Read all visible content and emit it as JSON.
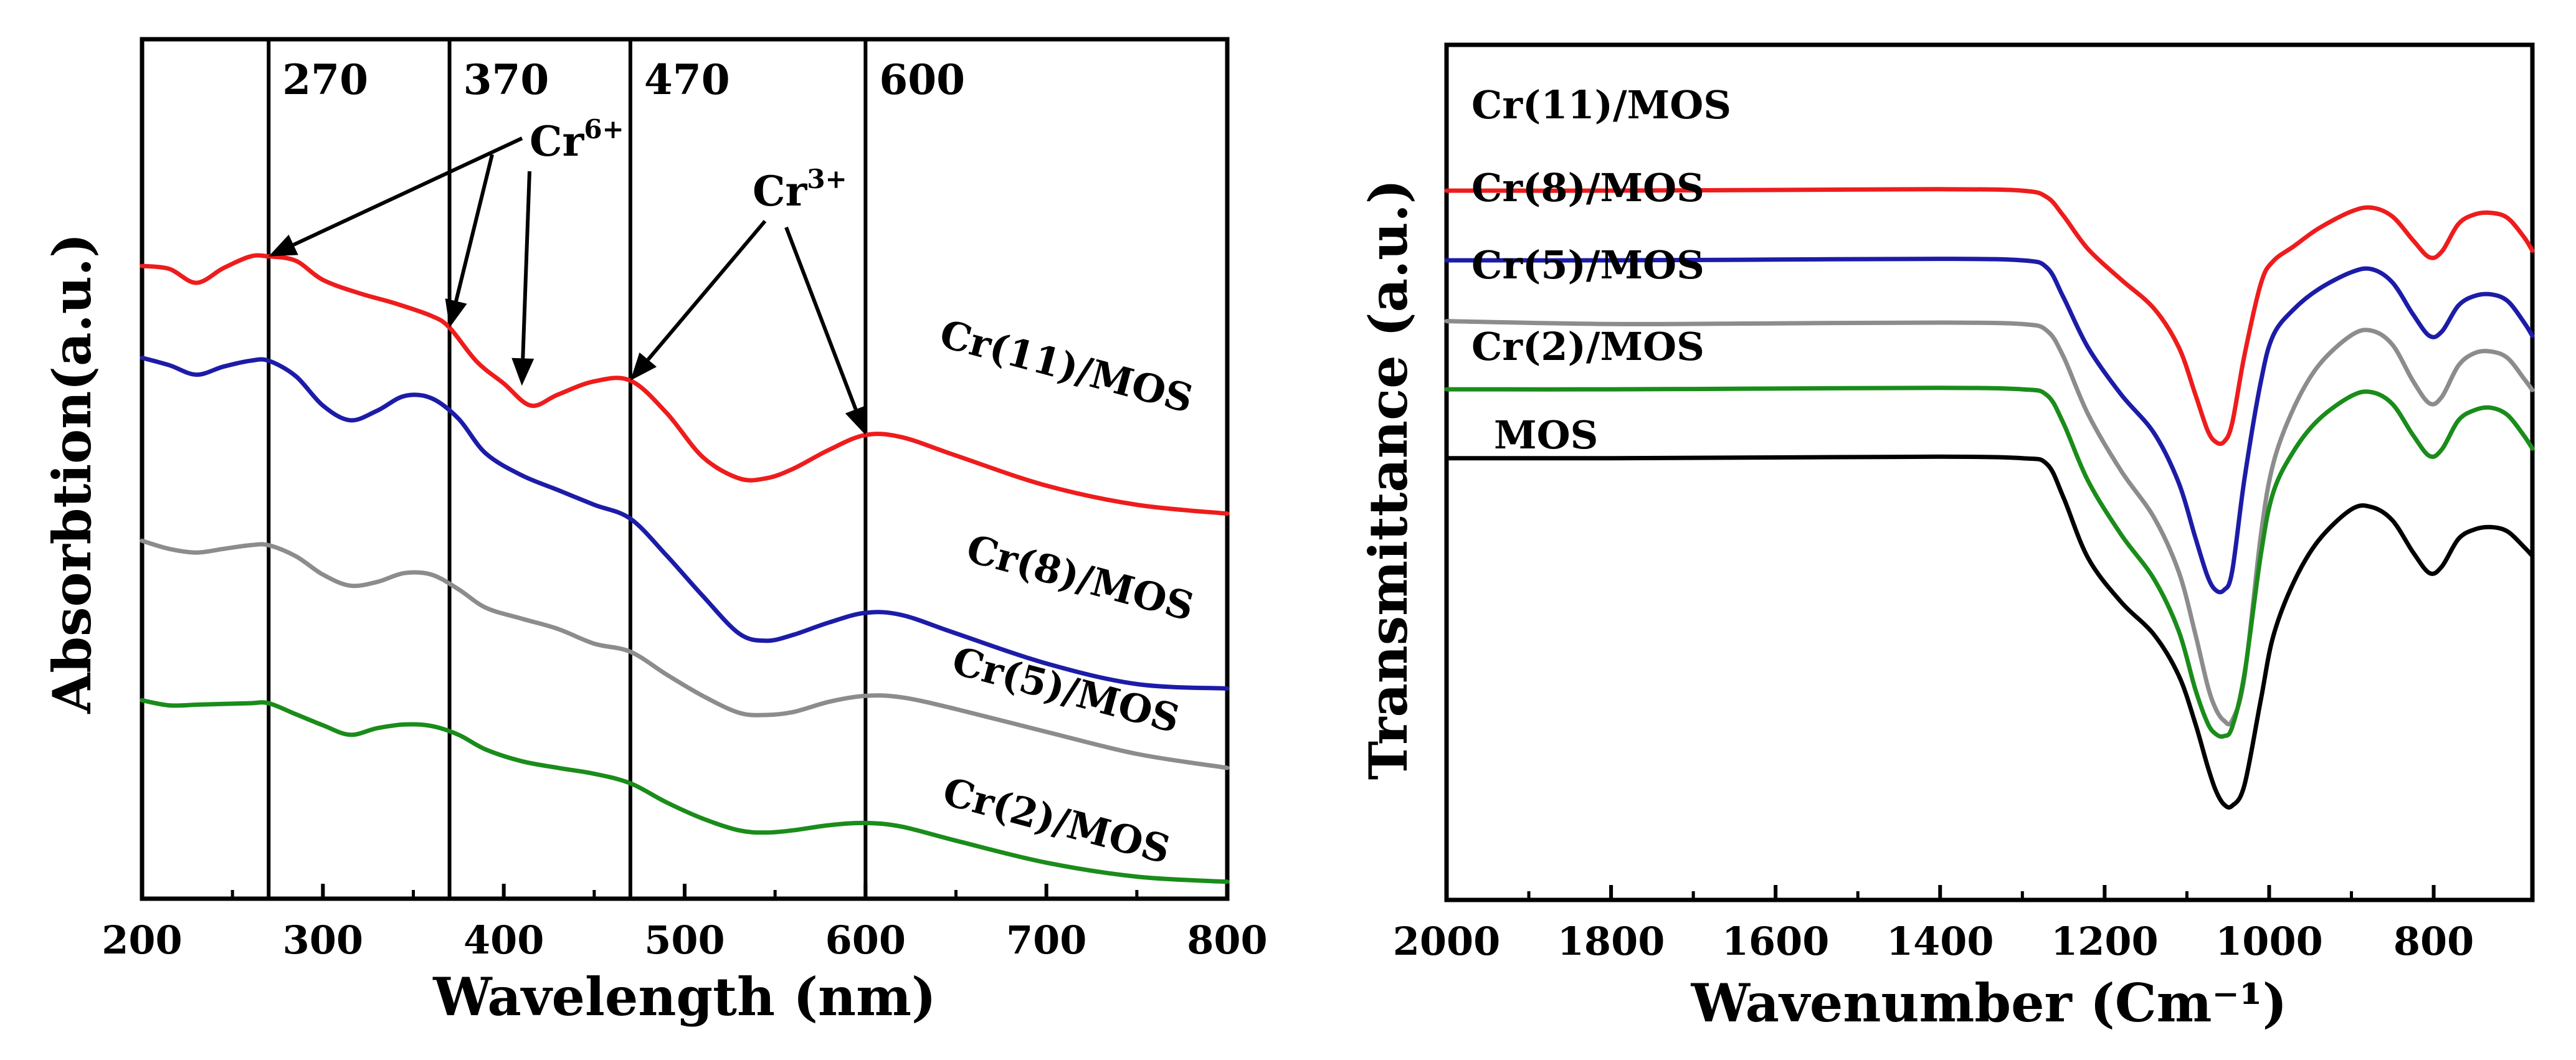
{
  "chart_data": [
    {
      "type": "line",
      "panel": "left",
      "title": "",
      "xlabel": "Wavelength (nm)",
      "ylabel": "Absorbtion(a.u.)",
      "xlim": [
        200,
        800
      ],
      "ylim": [
        0,
        100
      ],
      "yticks_shown": false,
      "xticks": [
        "200",
        "300",
        "400",
        "500",
        "600",
        "700",
        "800"
      ],
      "vertical_markers": [
        {
          "x": 270,
          "label": "270"
        },
        {
          "x": 370,
          "label": "370"
        },
        {
          "x": 470,
          "label": "470"
        },
        {
          "x": 600,
          "label": "600"
        }
      ],
      "annotations": [
        {
          "label": "Cr",
          "superscript": "6+",
          "points_to": [
            [
              270,
              86.3
            ],
            [
              370,
              76.6
            ],
            [
              410,
              68.7
            ]
          ]
        },
        {
          "label": "Cr",
          "superscript": "3+",
          "points_to": [
            [
              470,
              69.4
            ],
            [
              600,
              62.0
            ]
          ]
        }
      ],
      "series": [
        {
          "name": "Cr(11)/MOS",
          "color": "#ee1c1c",
          "x": [
            200,
            215,
            230,
            245,
            260,
            270,
            285,
            300,
            320,
            340,
            360,
            370,
            385,
            400,
            415,
            430,
            450,
            470,
            490,
            510,
            530,
            545,
            560,
            580,
            600,
            620,
            650,
            700,
            750,
            800
          ],
          "y": [
            85.0,
            84.6,
            82.7,
            84.7,
            86.3,
            86.3,
            85.7,
            83.1,
            81.3,
            79.9,
            78.2,
            76.6,
            72.0,
            69.0,
            66.0,
            67.5,
            69.3,
            69.4,
            65.0,
            59.0,
            56.1,
            56.1,
            57.4,
            60.0,
            62.0,
            61.7,
            59.2,
            55.1,
            52.5,
            51.3
          ]
        },
        {
          "name": "Cr(8)/MOS",
          "color": "#1c1ca8",
          "x": [
            200,
            215,
            230,
            245,
            260,
            270,
            285,
            300,
            315,
            330,
            345,
            360,
            375,
            390,
            410,
            430,
            450,
            470,
            490,
            510,
            530,
            545,
            560,
            580,
            600,
            620,
            650,
            700,
            750,
            800
          ],
          "y": [
            72.5,
            71.5,
            70.2,
            71.3,
            72.1,
            72.1,
            70.0,
            66.0,
            64.0,
            65.3,
            67.3,
            67.0,
            64.2,
            59.5,
            56.5,
            54.5,
            52.5,
            50.6,
            45.6,
            40.1,
            35.0,
            34.0,
            34.8,
            36.5,
            37.8,
            37.5,
            35.0,
            30.9,
            28.1,
            27.5
          ]
        },
        {
          "name": "Cr(5)/MOS",
          "color": "#8c8c8c",
          "x": [
            200,
            215,
            230,
            245,
            260,
            270,
            285,
            300,
            315,
            330,
            345,
            360,
            375,
            390,
            410,
            430,
            450,
            470,
            490,
            510,
            530,
            545,
            560,
            580,
            600,
            620,
            650,
            700,
            750,
            800
          ],
          "y": [
            47.6,
            46.5,
            46.0,
            46.5,
            47.0,
            47.0,
            45.5,
            43.0,
            41.5,
            42.0,
            43.2,
            43.0,
            41.0,
            38.5,
            37.0,
            35.6,
            33.6,
            32.5,
            29.4,
            26.5,
            24.2,
            23.9,
            24.3,
            25.7,
            26.5,
            26.3,
            24.7,
            21.6,
            18.6,
            16.7
          ]
        },
        {
          "name": "Cr(2)/MOS",
          "color": "#1a8c1a",
          "x": [
            200,
            215,
            230,
            245,
            260,
            270,
            285,
            300,
            315,
            330,
            345,
            360,
            375,
            390,
            410,
            430,
            450,
            470,
            490,
            510,
            530,
            545,
            560,
            580,
            600,
            620,
            650,
            700,
            750,
            800
          ],
          "y": [
            25.9,
            25.2,
            25.3,
            25.4,
            25.5,
            25.5,
            24.0,
            22.5,
            21.2,
            22.1,
            22.6,
            22.4,
            21.2,
            19.2,
            17.6,
            16.7,
            15.9,
            14.6,
            12.0,
            9.8,
            8.2,
            7.9,
            8.2,
            8.9,
            9.2,
            8.7,
            6.8,
            3.8,
            1.9,
            1.2
          ]
        }
      ]
    },
    {
      "type": "line",
      "panel": "right",
      "title": "",
      "xlabel": "Wavenumber (Cm⁻¹)",
      "ylabel": "Transmittance (a.u.)",
      "xlim": [
        2000,
        680
      ],
      "ylim": [
        0,
        100
      ],
      "yticks_shown": false,
      "xticks": [
        "2000",
        "1800",
        "1600",
        "1400",
        "1200",
        "1000",
        "800"
      ],
      "series": [
        {
          "name": "Cr(11)/MOS",
          "color": "#ee1c1c",
          "x": [
            2000,
            1800,
            1600,
            1400,
            1300,
            1270,
            1250,
            1220,
            1180,
            1140,
            1110,
            1090,
            1075,
            1065,
            1055,
            1045,
            1030,
            1010,
            995,
            970,
            940,
            900,
            875,
            850,
            825,
            805,
            790,
            770,
            750,
            730,
            710,
            690,
            680
          ],
          "y": [
            89.4,
            89.4,
            89.5,
            89.6,
            89.4,
            88.5,
            86.0,
            81.5,
            77.4,
            73.5,
            68.3,
            62.0,
            57.1,
            55.5,
            55.5,
            58.0,
            67.2,
            76.9,
            79.9,
            81.9,
            84.3,
            86.6,
            87.1,
            85.9,
            82.7,
            80.4,
            81.2,
            84.9,
            86.2,
            86.4,
            85.7,
            83.1,
            81.3
          ]
        },
        {
          "name": "Cr(8)/MOS",
          "color": "#1c1ca8",
          "x": [
            2000,
            1800,
            1600,
            1400,
            1300,
            1270,
            1250,
            1220,
            1180,
            1140,
            1110,
            1090,
            1075,
            1065,
            1055,
            1045,
            1030,
            1010,
            995,
            970,
            940,
            900,
            875,
            850,
            825,
            805,
            790,
            770,
            750,
            730,
            710,
            690,
            680
          ],
          "y": [
            80.0,
            80.0,
            80.1,
            80.2,
            80.0,
            79.0,
            75.0,
            68.2,
            61.9,
            56.7,
            50.0,
            42.7,
            37.4,
            35.5,
            35.5,
            38.0,
            50.5,
            63.7,
            69.9,
            73.4,
            76.1,
            78.4,
            78.8,
            77.0,
            72.7,
            69.8,
            70.4,
            73.9,
            75.2,
            75.4,
            74.5,
            71.6,
            69.8
          ]
        },
        {
          "name": "Cr(5)/MOS",
          "color": "#8c8c8c",
          "x": [
            2000,
            1800,
            1600,
            1400,
            1300,
            1270,
            1250,
            1220,
            1180,
            1140,
            1110,
            1090,
            1075,
            1065,
            1055,
            1045,
            1030,
            1010,
            995,
            970,
            940,
            900,
            875,
            850,
            825,
            805,
            790,
            770,
            750,
            730,
            710,
            690,
            680
          ],
          "y": [
            71.8,
            71.4,
            71.5,
            71.6,
            71.4,
            70.5,
            67.0,
            59.2,
            51.6,
            45.3,
            38.0,
            29.7,
            22.7,
            19.5,
            17.9,
            17.9,
            23.8,
            43.0,
            52.6,
            60.1,
            65.8,
            69.9,
            70.5,
            68.6,
            63.7,
            60.7,
            61.6,
            65.8,
            67.5,
            67.7,
            66.8,
            64.0,
            62.5
          ]
        },
        {
          "name": "Cr(2)/MOS",
          "color": "#1a8c1a",
          "x": [
            2000,
            1800,
            1600,
            1400,
            1300,
            1270,
            1250,
            1220,
            1180,
            1140,
            1110,
            1090,
            1075,
            1065,
            1055,
            1045,
            1030,
            1010,
            995,
            970,
            940,
            900,
            875,
            850,
            825,
            805,
            790,
            770,
            750,
            730,
            710,
            690,
            680
          ],
          "y": [
            62.6,
            62.6,
            62.7,
            62.8,
            62.6,
            61.8,
            58.0,
            50.2,
            43.0,
            37.0,
            30.0,
            22.2,
            17.6,
            16.1,
            15.8,
            17.0,
            24.2,
            40.4,
            48.7,
            54.3,
            58.5,
            61.7,
            62.2,
            60.6,
            56.4,
            53.6,
            54.5,
            58.4,
            59.8,
            60.1,
            59.1,
            56.3,
            54.6
          ]
        },
        {
          "name": "MOS",
          "color": "#000000",
          "x": [
            2000,
            1800,
            1600,
            1400,
            1300,
            1270,
            1250,
            1220,
            1180,
            1140,
            1110,
            1090,
            1075,
            1065,
            1055,
            1045,
            1030,
            1010,
            995,
            970,
            940,
            900,
            875,
            850,
            825,
            805,
            790,
            770,
            750,
            730,
            710,
            690,
            680
          ],
          "y": [
            53.3,
            53.3,
            53.4,
            53.5,
            53.3,
            52.5,
            48.0,
            39.8,
            33.9,
            29.5,
            24.0,
            17.6,
            11.8,
            8.5,
            6.6,
            6.4,
            9.2,
            20.8,
            29.3,
            36.6,
            42.2,
            46.4,
            46.7,
            44.9,
            40.6,
            37.8,
            38.7,
            42.4,
            43.7,
            44.0,
            43.4,
            41.3,
            40.1
          ]
        }
      ]
    }
  ]
}
